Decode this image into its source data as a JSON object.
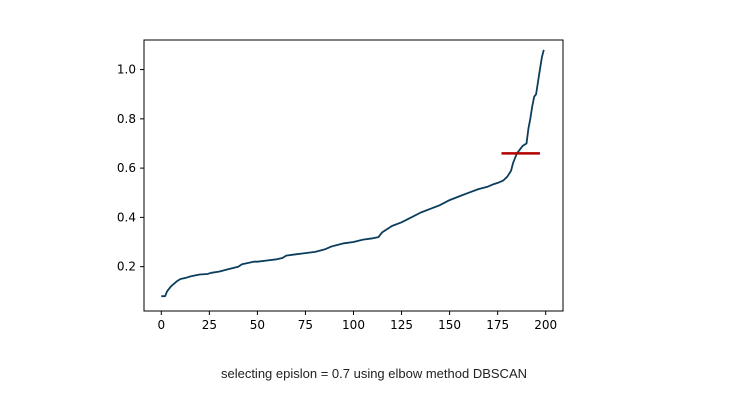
{
  "caption": "selecting epislon = 0.7 using elbow method DBSCAN",
  "chart_data": {
    "type": "line",
    "title": "",
    "xlabel": "",
    "ylabel": "",
    "xlim": [
      -9,
      209
    ],
    "ylim": [
      0.02,
      1.12
    ],
    "xticks": [
      0,
      25,
      50,
      75,
      100,
      125,
      150,
      175,
      200
    ],
    "yticks": [
      0.2,
      0.4,
      0.6,
      0.8,
      1.0
    ],
    "xtick_labels": [
      "0",
      "25",
      "50",
      "75",
      "100",
      "125",
      "150",
      "175",
      "200"
    ],
    "ytick_labels": [
      "0.2",
      "0.4",
      "0.6",
      "0.8",
      "1.0"
    ],
    "grid": false,
    "series": [
      {
        "color": "#0b3d5c",
        "x": [
          0,
          2,
          3,
          5,
          8,
          10,
          13,
          15,
          18,
          20,
          24,
          26,
          30,
          35,
          40,
          42,
          45,
          48,
          50,
          55,
          60,
          63,
          65,
          70,
          75,
          80,
          85,
          88,
          90,
          95,
          100,
          105,
          110,
          113,
          115,
          118,
          120,
          125,
          130,
          135,
          140,
          145,
          150,
          155,
          160,
          165,
          170,
          173,
          175,
          178,
          180,
          182,
          183,
          185,
          186,
          187,
          188,
          190,
          191,
          192,
          193,
          194,
          195,
          196,
          197,
          198,
          199
        ],
        "y": [
          0.08,
          0.08,
          0.1,
          0.12,
          0.14,
          0.15,
          0.155,
          0.16,
          0.165,
          0.168,
          0.17,
          0.175,
          0.18,
          0.19,
          0.2,
          0.21,
          0.215,
          0.22,
          0.22,
          0.225,
          0.23,
          0.235,
          0.245,
          0.25,
          0.255,
          0.26,
          0.27,
          0.28,
          0.285,
          0.295,
          0.3,
          0.31,
          0.315,
          0.32,
          0.34,
          0.355,
          0.365,
          0.38,
          0.4,
          0.42,
          0.435,
          0.45,
          0.47,
          0.485,
          0.5,
          0.515,
          0.525,
          0.535,
          0.54,
          0.55,
          0.565,
          0.59,
          0.62,
          0.66,
          0.67,
          0.68,
          0.69,
          0.7,
          0.76,
          0.8,
          0.85,
          0.89,
          0.9,
          0.95,
          1.0,
          1.05,
          1.08
        ]
      }
    ],
    "annotation_line": {
      "x": [
        177,
        197
      ],
      "y": [
        0.66,
        0.66
      ],
      "color": "#b30000"
    }
  }
}
